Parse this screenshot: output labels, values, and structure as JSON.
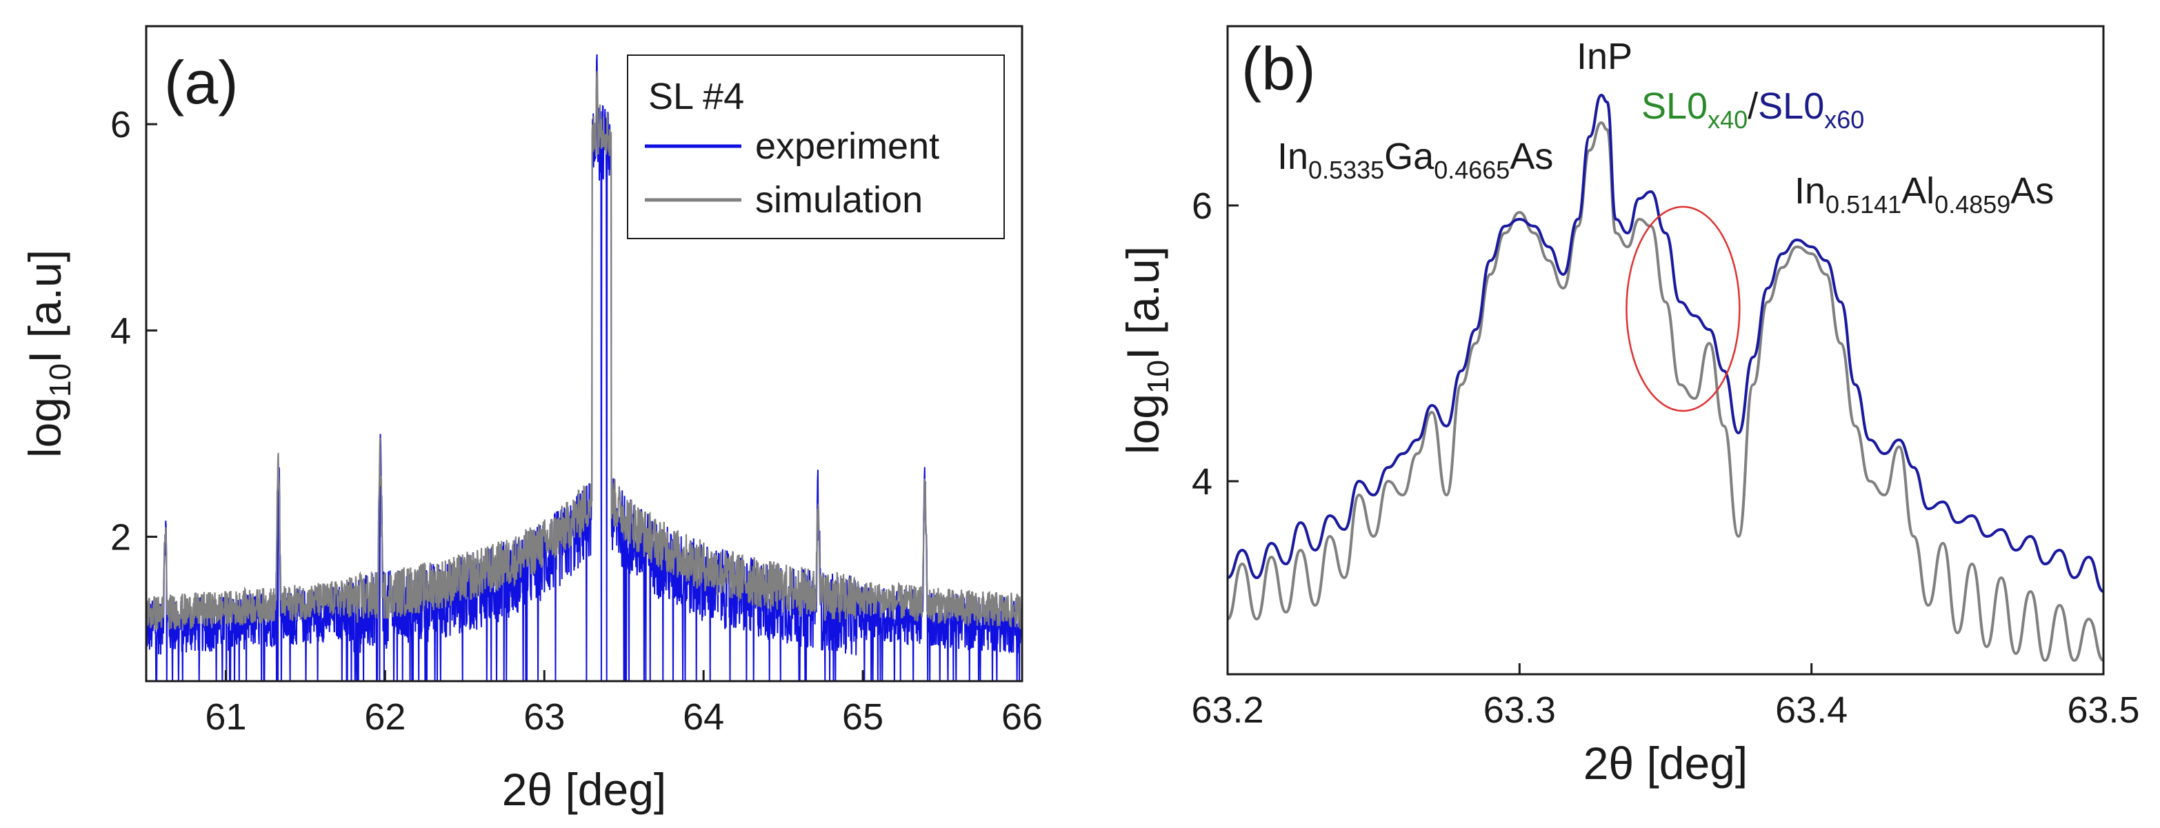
{
  "figure": {
    "description_note": "Two-panel XRD figure"
  },
  "chart_data": [
    {
      "type": "line",
      "panel_label": "(a)",
      "xlabel": "2θ [deg]",
      "ylabel_main": "log",
      "ylabel_sub": "10",
      "ylabel_rest": "I [a.u]",
      "xlim": [
        60.5,
        66.0
      ],
      "ylim": [
        0.6,
        6.95
      ],
      "xticks": [
        61,
        62,
        63,
        64,
        65,
        66
      ],
      "yticks": [
        2,
        4,
        6
      ],
      "legend": {
        "title": "SL #4",
        "placement": "top-right",
        "entries": [
          "experiment",
          "simulation"
        ]
      },
      "series": [
        {
          "name": "experiment",
          "color": "#1010e0",
          "peaks": [
            {
              "x": 60.62,
              "y": 2.2
            },
            {
              "x": 61.33,
              "y": 2.85
            },
            {
              "x": 61.97,
              "y": 2.95
            },
            {
              "x": 63.33,
              "y": 6.85
            },
            {
              "x": 63.4,
              "y": 5.75
            },
            {
              "x": 64.72,
              "y": 2.5
            },
            {
              "x": 65.39,
              "y": 2.6
            }
          ],
          "baseline": 0.95
        },
        {
          "name": "simulation",
          "color": "#808080",
          "peaks": [
            {
              "x": 60.62,
              "y": 2.1
            },
            {
              "x": 61.33,
              "y": 2.75
            },
            {
              "x": 61.97,
              "y": 2.85
            },
            {
              "x": 63.33,
              "y": 6.7
            },
            {
              "x": 63.4,
              "y": 5.6
            },
            {
              "x": 64.72,
              "y": 2.45
            },
            {
              "x": 65.39,
              "y": 2.55
            }
          ],
          "baseline": 1.05
        }
      ]
    },
    {
      "type": "line",
      "panel_label": "(b)",
      "xlabel": "2θ [deg]",
      "ylabel_main": "log",
      "ylabel_sub": "10",
      "ylabel_rest": "I [a.u]",
      "xlim": [
        63.2,
        63.5
      ],
      "ylim": [
        2.6,
        7.3
      ],
      "xticks": [
        63.2,
        63.3,
        63.4,
        63.5
      ],
      "xtick_labels": [
        "63.2",
        "63.3",
        "63.4",
        "63.5"
      ],
      "yticks": [
        4,
        6
      ],
      "annotations": {
        "ingaas": {
          "base": "In",
          "s1": "0.5335",
          "mid": "Ga",
          "s2": "0.4665",
          "end": "As"
        },
        "inp": "InP",
        "sl": {
          "a": "SL0",
          "a_sub": "x40",
          "sep": "/",
          "b": "SL0",
          "b_sub": "x60",
          "color_a": "#2a8a2a",
          "color_b": "#1a1a8a"
        },
        "inalas": {
          "base": "In",
          "s1": "0.5141",
          "mid": "Al",
          "s2": "0.4859",
          "end": "As"
        }
      },
      "highlight_ellipse": {
        "x_center": 63.356,
        "y_center": 5.25,
        "color": "#e03030"
      },
      "series": [
        {
          "name": "experiment",
          "color": "#1a1aa0",
          "x": [
            63.2,
            63.205,
            63.21,
            63.215,
            63.22,
            63.225,
            63.23,
            63.235,
            63.24,
            63.245,
            63.25,
            63.255,
            63.26,
            63.265,
            63.27,
            63.275,
            63.28,
            63.285,
            63.29,
            63.295,
            63.3,
            63.305,
            63.31,
            63.315,
            63.32,
            63.324,
            63.328,
            63.33,
            63.333,
            63.337,
            63.341,
            63.345,
            63.35,
            63.355,
            63.36,
            63.365,
            63.37,
            63.375,
            63.38,
            63.385,
            63.39,
            63.395,
            63.4,
            63.405,
            63.41,
            63.415,
            63.42,
            63.425,
            63.43,
            63.435,
            63.44,
            63.445,
            63.45,
            63.455,
            63.46,
            63.465,
            63.47,
            63.475,
            63.48,
            63.485,
            63.49,
            63.495,
            63.5
          ],
          "y": [
            3.3,
            3.5,
            3.3,
            3.55,
            3.4,
            3.7,
            3.5,
            3.75,
            3.65,
            4.0,
            3.9,
            4.1,
            4.2,
            4.3,
            4.55,
            4.4,
            4.8,
            5.1,
            5.6,
            5.85,
            5.9,
            5.85,
            5.7,
            5.5,
            5.9,
            6.5,
            6.8,
            6.75,
            5.9,
            5.8,
            6.05,
            6.1,
            5.8,
            5.3,
            5.2,
            5.1,
            4.8,
            4.35,
            4.9,
            5.4,
            5.65,
            5.75,
            5.7,
            5.6,
            5.3,
            4.7,
            4.3,
            4.2,
            4.3,
            4.1,
            3.8,
            3.85,
            3.7,
            3.75,
            3.6,
            3.65,
            3.5,
            3.6,
            3.4,
            3.5,
            3.3,
            3.45,
            3.2
          ]
        },
        {
          "name": "simulation",
          "color": "#808080",
          "x": [
            63.2,
            63.205,
            63.21,
            63.215,
            63.22,
            63.225,
            63.23,
            63.235,
            63.24,
            63.245,
            63.25,
            63.255,
            63.26,
            63.265,
            63.27,
            63.275,
            63.28,
            63.285,
            63.29,
            63.295,
            63.3,
            63.305,
            63.31,
            63.315,
            63.32,
            63.324,
            63.328,
            63.33,
            63.333,
            63.337,
            63.341,
            63.345,
            63.35,
            63.355,
            63.36,
            63.365,
            63.37,
            63.375,
            63.38,
            63.385,
            63.39,
            63.395,
            63.4,
            63.405,
            63.41,
            63.415,
            63.42,
            63.425,
            63.43,
            63.435,
            63.44,
            63.445,
            63.45,
            63.455,
            63.46,
            63.465,
            63.47,
            63.475,
            63.48,
            63.485,
            63.49,
            63.495,
            63.5
          ],
          "y": [
            3.0,
            3.4,
            3.0,
            3.45,
            3.05,
            3.5,
            3.1,
            3.6,
            3.3,
            3.9,
            3.6,
            4.0,
            3.9,
            4.2,
            4.5,
            3.9,
            4.7,
            5.0,
            5.5,
            5.8,
            5.95,
            5.8,
            5.6,
            5.4,
            5.85,
            6.4,
            6.6,
            6.55,
            5.8,
            5.7,
            5.9,
            5.85,
            5.3,
            4.7,
            4.6,
            5.0,
            4.4,
            3.6,
            4.7,
            5.3,
            5.55,
            5.7,
            5.65,
            5.5,
            5.0,
            4.4,
            4.0,
            3.9,
            4.25,
            3.6,
            3.1,
            3.55,
            2.9,
            3.4,
            2.8,
            3.3,
            2.75,
            3.2,
            2.7,
            3.1,
            2.7,
            3.0,
            2.7
          ]
        }
      ]
    }
  ]
}
